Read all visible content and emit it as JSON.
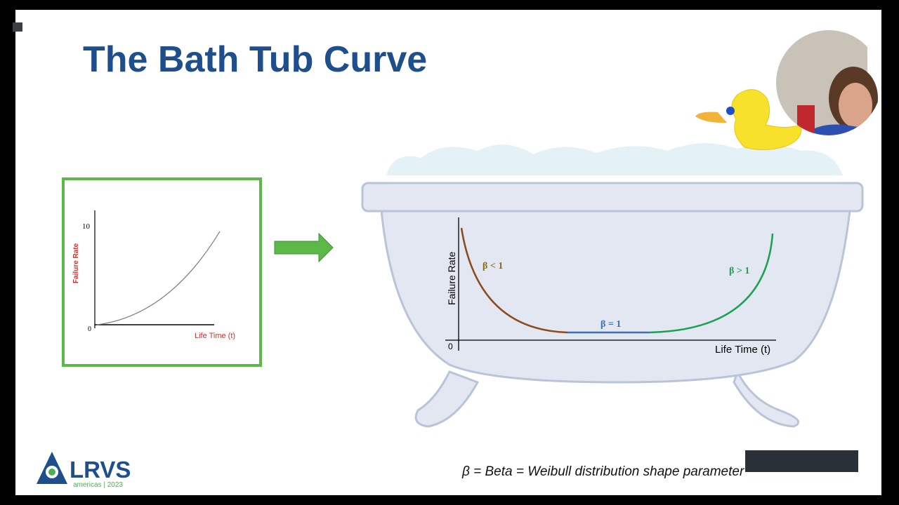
{
  "slide": {
    "title": "The Bath Tub Curve",
    "small_chart": {
      "y_tick_top": "10",
      "origin": "0",
      "y_label": "Failure Rate",
      "x_label": "Life Time (t)"
    },
    "tub_chart": {
      "y_label": "Failure Rate",
      "origin": "0",
      "x_label": "Life Time (t)",
      "early": "β < 1",
      "useful": "β = 1",
      "wearout": "β > 1"
    },
    "footnote": "β = Beta = Weibull distribution shape parameter",
    "logo": {
      "name": "LRVS",
      "tagline": "americas | 2023"
    }
  }
}
